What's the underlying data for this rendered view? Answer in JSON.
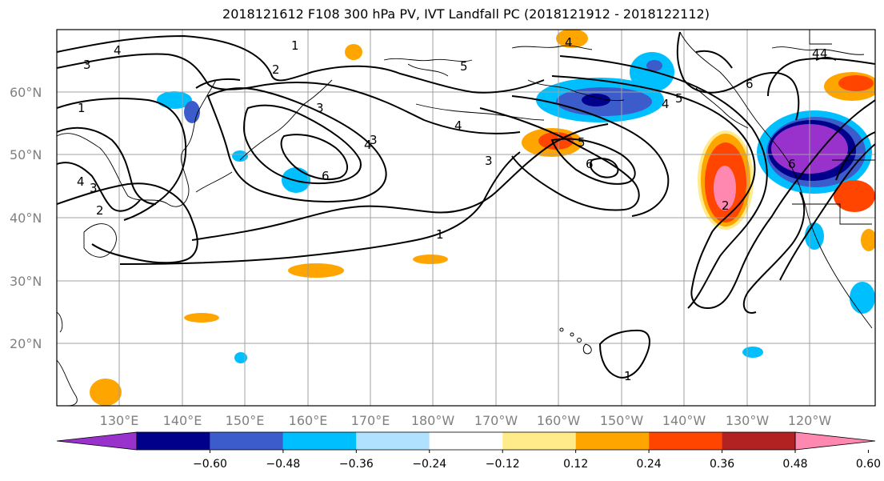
{
  "title": "2018121612 F108 300 hPa PV, IVT Landfall PC (2018121912 - 2018122112)",
  "lat_labels": [
    "60°N",
    "50°N",
    "40°N",
    "30°N",
    "20°N"
  ],
  "lon_labels": [
    "130°E",
    "140°E",
    "150°E",
    "160°E",
    "170°E",
    "180°W",
    "170°W",
    "160°W",
    "150°W",
    "140°W",
    "130°W",
    "120°W"
  ],
  "colorbar": {
    "ticks": [
      "−0.60",
      "−0.48",
      "−0.36",
      "−0.24",
      "−0.12",
      "0.12",
      "0.24",
      "0.36",
      "0.48",
      "0.60"
    ],
    "colors": [
      "#9932cc",
      "#00008b",
      "#3c5ccc",
      "#00bfff",
      "#b0e2ff",
      "#ffffff",
      "#ffeb8a",
      "#ffa500",
      "#ff4500",
      "#b22222",
      "#ff88b0"
    ]
  },
  "contour_labels": [
    "4",
    "3",
    "1",
    "2",
    "5",
    "4",
    "4",
    "3",
    "6",
    "4",
    "5",
    "6",
    "3",
    "1",
    "5",
    "4",
    "6",
    "2",
    "4",
    "4",
    "3",
    "1",
    "1",
    "2",
    "6",
    "4",
    "3"
  ]
}
